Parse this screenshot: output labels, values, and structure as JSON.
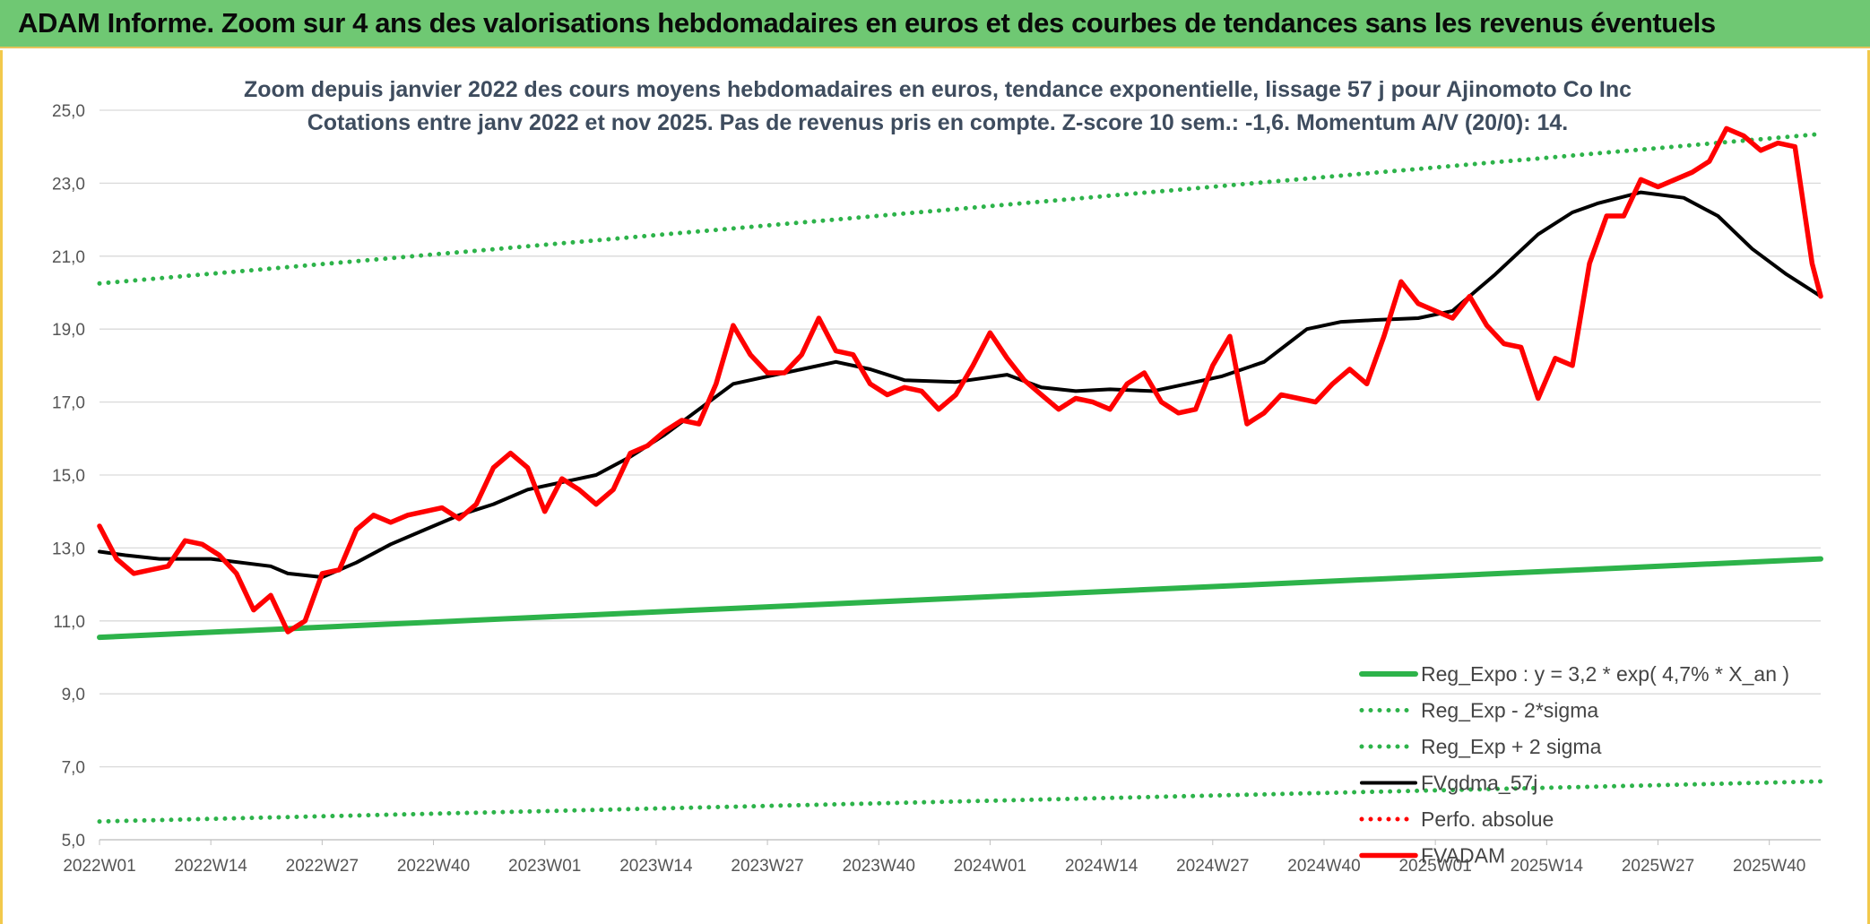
{
  "banner": {
    "title": "ADAM Informe. Zoom sur 4 ans des valorisations hebdomadaires en euros et des courbes de tendances sans les revenus éventuels"
  },
  "chart_data": {
    "type": "line",
    "title": "Zoom depuis janvier 2022 des cours moyens hebdomadaires en euros, tendance exponentielle, lissage 57 j pour Ajinomoto Co Inc",
    "subtitle": "Cotations entre janv 2022 et nov 2025. Pas de revenus pris en compte. Z-score 10 sem.: -1,6. Momentum A/V (20/0): 14.",
    "ylim": [
      5,
      25
    ],
    "ytick_labels": [
      "25,0",
      "23,0",
      "21,0",
      "19,0",
      "17,0",
      "15,0",
      "13,0",
      "11,0",
      "9,0",
      "7,0",
      "5,0"
    ],
    "ytick_values": [
      25,
      23,
      21,
      19,
      17,
      15,
      13,
      11,
      9,
      7,
      5
    ],
    "xtick_labels": [
      "2022W01",
      "2022W14",
      "2022W27",
      "2022W40",
      "2023W01",
      "2023W14",
      "2023W27",
      "2023W40",
      "2024W01",
      "2024W14",
      "2024W27",
      "2024W40",
      "2025W01",
      "2025W14",
      "2025W27",
      "2025W40"
    ],
    "x_count": 202,
    "grid": true,
    "legend_position": "bottom-right",
    "series": [
      {
        "name": "Reg_Expo : y = 3,2 * exp( 4,7% *  X_an )",
        "style": "solid",
        "color": "#2db34a",
        "x": [
          0,
          201
        ],
        "values": [
          10.55,
          12.7
        ]
      },
      {
        "name": "Reg_Exp - 2*sigma",
        "style": "dotted",
        "color": "#2db34a",
        "x": [
          0,
          201
        ],
        "values": [
          5.5,
          6.6
        ]
      },
      {
        "name": "Reg_Exp + 2 sigma",
        "style": "dotted",
        "color": "#2db34a",
        "x": [
          0,
          201
        ],
        "values": [
          20.25,
          24.35
        ]
      },
      {
        "name": "FVgdma_57j",
        "style": "solid",
        "color": "#000000",
        "x": [
          0,
          3,
          7,
          13,
          20,
          22,
          26,
          30,
          34,
          38,
          42,
          46,
          50,
          54,
          58,
          62,
          66,
          70,
          74,
          78,
          82,
          86,
          90,
          94,
          100,
          106,
          110,
          114,
          118,
          123,
          127,
          131,
          136,
          141,
          145,
          149,
          154,
          158,
          163,
          168,
          172,
          175,
          180,
          185,
          189,
          193,
          197,
          201
        ],
        "values": [
          12.9,
          12.8,
          12.7,
          12.7,
          12.5,
          12.3,
          12.2,
          12.6,
          13.1,
          13.5,
          13.9,
          14.2,
          14.6,
          14.8,
          15.0,
          15.5,
          16.1,
          16.8,
          17.5,
          17.7,
          17.9,
          18.1,
          17.9,
          17.6,
          17.55,
          17.75,
          17.4,
          17.3,
          17.35,
          17.3,
          17.5,
          17.7,
          18.1,
          19.0,
          19.2,
          19.25,
          19.3,
          19.5,
          20.5,
          21.6,
          22.2,
          22.45,
          22.75,
          22.6,
          22.1,
          21.2,
          20.5,
          19.9
        ]
      },
      {
        "name": "Perfo. absolue",
        "style": "dotted",
        "color": "#ff0000",
        "x": [],
        "values": []
      },
      {
        "name": "FVADAM",
        "style": "solid",
        "color": "#ff0000",
        "x": [
          0,
          2,
          4,
          6,
          8,
          10,
          12,
          14,
          16,
          18,
          20,
          22,
          24,
          26,
          28,
          30,
          32,
          34,
          36,
          38,
          40,
          42,
          44,
          46,
          48,
          50,
          52,
          54,
          56,
          58,
          60,
          62,
          64,
          66,
          68,
          70,
          72,
          74,
          76,
          78,
          80,
          82,
          84,
          86,
          88,
          90,
          92,
          94,
          96,
          98,
          100,
          102,
          104,
          106,
          108,
          110,
          112,
          114,
          116,
          118,
          120,
          122,
          124,
          126,
          128,
          130,
          132,
          134,
          136,
          138,
          140,
          142,
          144,
          146,
          148,
          150,
          152,
          154,
          156,
          158,
          160,
          162,
          164,
          166,
          168,
          170,
          172,
          174,
          176,
          178,
          180,
          182,
          184,
          186,
          188,
          190,
          192,
          194,
          196,
          198,
          200,
          201
        ],
        "values": [
          13.6,
          12.7,
          12.3,
          12.4,
          12.5,
          13.2,
          13.1,
          12.8,
          12.3,
          11.3,
          11.7,
          10.7,
          11.0,
          12.3,
          12.4,
          13.5,
          13.9,
          13.7,
          13.9,
          14.0,
          14.1,
          13.8,
          14.2,
          15.2,
          15.6,
          15.2,
          14.0,
          14.9,
          14.6,
          14.2,
          14.6,
          15.6,
          15.8,
          16.2,
          16.5,
          16.4,
          17.5,
          19.1,
          18.3,
          17.8,
          17.8,
          18.3,
          19.3,
          18.4,
          18.3,
          17.5,
          17.2,
          17.4,
          17.3,
          16.8,
          17.2,
          18.0,
          18.9,
          18.2,
          17.6,
          17.2,
          16.8,
          17.1,
          17.0,
          16.8,
          17.5,
          17.8,
          17.0,
          16.7,
          16.8,
          18.0,
          18.8,
          16.4,
          16.7,
          17.2,
          17.1,
          17.0,
          17.5,
          17.9,
          17.5,
          18.8,
          20.3,
          19.7,
          19.5,
          19.3,
          19.9,
          19.1,
          18.6,
          18.5,
          17.1,
          18.2,
          18.0,
          20.8,
          22.1,
          22.1,
          23.1,
          22.9,
          23.1,
          23.3,
          23.6,
          24.5,
          24.3,
          23.9,
          24.1,
          24.0,
          20.8,
          19.9
        ]
      }
    ]
  }
}
